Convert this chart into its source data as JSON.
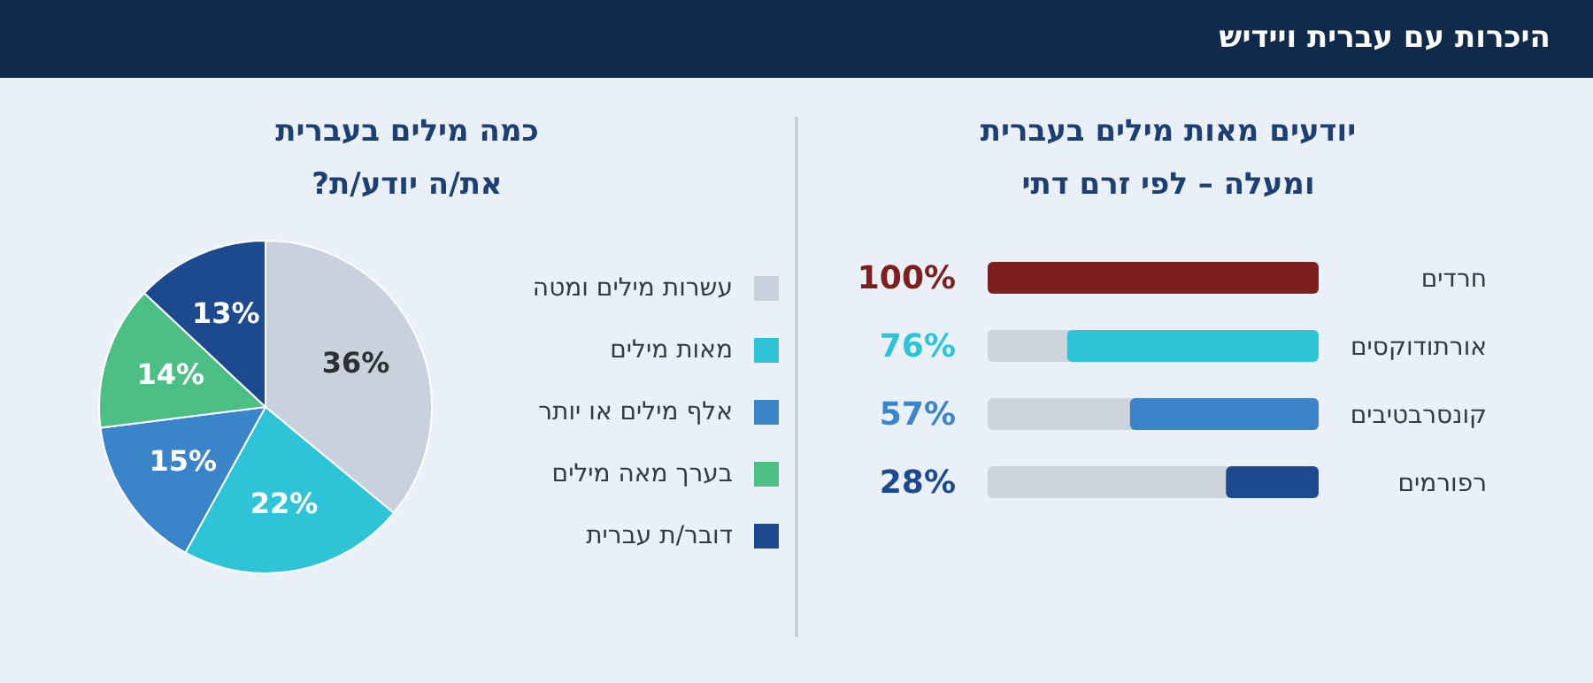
{
  "chart_data": [
    {
      "type": "bar",
      "orientation": "horizontal",
      "title": "יודעים מאות מילים בעברית ומעלה – לפי זרם דתי",
      "annotations": [
        "היכרות עם עברית ויידיש"
      ],
      "categories": [
        "חרדים",
        "אורתודוקסים",
        "קונסרבטיבים",
        "רפורמים"
      ],
      "values": [
        100,
        76,
        57,
        28
      ],
      "colors": [
        "#7d1f1f",
        "#2ec4d8",
        "#3a84c9",
        "#1d4a8e"
      ],
      "value_labels": [
        "100%",
        "76%",
        "57%",
        "28%"
      ],
      "xlim": [
        100,
        0
      ]
    },
    {
      "type": "pie",
      "title": "כמה מילים בעברית את/ה יודע/ת?",
      "categories": [
        "עשרות מילים ומטה",
        "מאות מילים",
        "אלף מילים או יותר",
        "בערך מאה מילים",
        "דובר/ת עברית"
      ],
      "values": [
        36,
        22,
        15,
        14,
        13
      ],
      "colors": [
        "#c9d1dc",
        "#2ec4d8",
        "#3a84c9",
        "#4cbf84",
        "#1d4a8e"
      ],
      "value_labels": [
        "36%",
        "22%",
        "15%",
        "14%",
        "13%"
      ],
      "legend": "right"
    }
  ]
}
